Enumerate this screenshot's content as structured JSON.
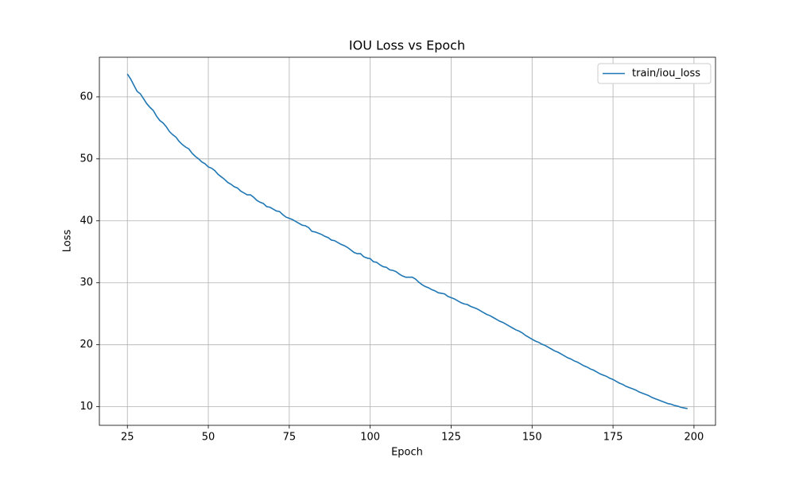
{
  "chart_data": {
    "type": "line",
    "title": "IOU Loss vs Epoch",
    "x_label": "Epoch",
    "y_label": "Loss",
    "xlim": [
      16.35,
      206.65
    ],
    "ylim": [
      7.0,
      66.4
    ],
    "xticks": [
      25,
      50,
      75,
      100,
      125,
      150,
      175,
      200
    ],
    "yticks": [
      10,
      20,
      30,
      40,
      50,
      60
    ],
    "grid": true,
    "legend": "upper right",
    "x": [
      25,
      26,
      27,
      28,
      29,
      30,
      31,
      32,
      33,
      34,
      35,
      36,
      37,
      38,
      39,
      40,
      41,
      42,
      43,
      44,
      45,
      46,
      47,
      48,
      49,
      50,
      51,
      52,
      53,
      54,
      55,
      56,
      57,
      58,
      59,
      60,
      61,
      62,
      63,
      64,
      65,
      66,
      67,
      68,
      69,
      70,
      71,
      72,
      73,
      74,
      75,
      76,
      77,
      78,
      79,
      80,
      81,
      82,
      83,
      84,
      85,
      86,
      87,
      88,
      89,
      90,
      91,
      92,
      93,
      94,
      95,
      96,
      97,
      98,
      99,
      100,
      101,
      102,
      103,
      104,
      105,
      106,
      107,
      108,
      109,
      110,
      111,
      112,
      113,
      114,
      115,
      116,
      117,
      118,
      119,
      120,
      121,
      122,
      123,
      124,
      125,
      126,
      127,
      128,
      129,
      130,
      131,
      132,
      133,
      134,
      135,
      136,
      137,
      138,
      139,
      140,
      141,
      142,
      143,
      144,
      145,
      146,
      147,
      148,
      149,
      150,
      151,
      152,
      153,
      154,
      155,
      156,
      157,
      158,
      159,
      160,
      161,
      162,
      163,
      164,
      165,
      166,
      167,
      168,
      169,
      170,
      171,
      172,
      173,
      174,
      175,
      176,
      177,
      178,
      179,
      180,
      181,
      182,
      183,
      184,
      185,
      186,
      187,
      188,
      189,
      190,
      191,
      192,
      193,
      194,
      195,
      196,
      197,
      198
    ],
    "series": [
      {
        "name": "train/iou_loss",
        "color": "#1f77b4",
        "values": [
          63.7,
          62.9,
          61.9,
          60.9,
          60.5,
          59.7,
          58.9,
          58.3,
          57.8,
          56.9,
          56.2,
          55.8,
          55.2,
          54.4,
          53.9,
          53.5,
          52.8,
          52.3,
          51.9,
          51.6,
          50.9,
          50.4,
          50.0,
          49.5,
          49.2,
          48.7,
          48.5,
          48.1,
          47.5,
          47.1,
          46.7,
          46.2,
          45.9,
          45.5,
          45.3,
          44.8,
          44.5,
          44.2,
          44.2,
          43.8,
          43.3,
          43.0,
          42.8,
          42.3,
          42.2,
          41.9,
          41.6,
          41.5,
          41.0,
          40.6,
          40.4,
          40.2,
          39.9,
          39.6,
          39.3,
          39.2,
          38.9,
          38.3,
          38.2,
          38.0,
          37.8,
          37.5,
          37.3,
          36.9,
          36.8,
          36.5,
          36.2,
          36.0,
          35.7,
          35.3,
          34.9,
          34.7,
          34.7,
          34.2,
          34.0,
          33.9,
          33.4,
          33.3,
          32.9,
          32.6,
          32.5,
          32.1,
          32.0,
          31.8,
          31.4,
          31.1,
          30.9,
          30.9,
          30.9,
          30.6,
          30.1,
          29.7,
          29.4,
          29.2,
          28.9,
          28.7,
          28.4,
          28.3,
          28.2,
          27.8,
          27.6,
          27.4,
          27.1,
          26.8,
          26.6,
          26.5,
          26.2,
          26.0,
          25.8,
          25.5,
          25.2,
          24.9,
          24.7,
          24.4,
          24.1,
          23.8,
          23.6,
          23.3,
          23.0,
          22.7,
          22.4,
          22.2,
          21.9,
          21.5,
          21.2,
          20.9,
          20.6,
          20.4,
          20.1,
          19.9,
          19.6,
          19.3,
          19.0,
          18.8,
          18.5,
          18.2,
          17.9,
          17.7,
          17.4,
          17.2,
          16.9,
          16.6,
          16.4,
          16.1,
          15.9,
          15.6,
          15.3,
          15.1,
          14.9,
          14.6,
          14.4,
          14.1,
          13.8,
          13.6,
          13.3,
          13.1,
          12.9,
          12.7,
          12.4,
          12.2,
          12.0,
          11.8,
          11.5,
          11.3,
          11.1,
          10.9,
          10.7,
          10.5,
          10.4,
          10.2,
          10.1,
          9.9,
          9.8,
          9.7
        ]
      }
    ]
  }
}
